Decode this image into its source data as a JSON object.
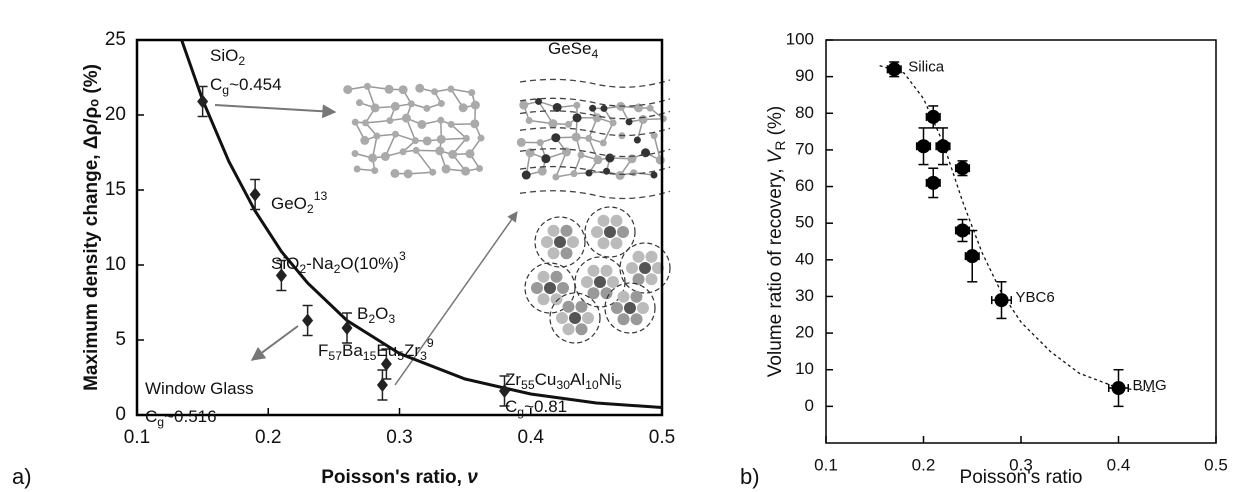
{
  "chart_data": [
    {
      "type": "scatter",
      "panel_label": "a)",
      "xlabel": {
        "runs": [
          {
            "text": "Poisson's ratio, "
          },
          {
            "text": "ν",
            "style": "italic"
          }
        ]
      },
      "ylabel": "Maximum density change, Δρ/ρₒ (%)",
      "xlim": [
        0.1,
        0.5
      ],
      "xticks": [
        0.1,
        0.2,
        0.3,
        0.4,
        0.5
      ],
      "ylim": [
        0,
        25
      ],
      "yticks": [
        0,
        5,
        10,
        15,
        20,
        25
      ],
      "marker": "diamond",
      "color": "#222222",
      "points": {
        "x": [
          0.15,
          0.19,
          0.21,
          0.23,
          0.26,
          0.29,
          0.287,
          0.38
        ],
        "y": [
          20.9,
          14.7,
          9.3,
          6.3,
          5.8,
          3.4,
          2.0,
          1.6
        ],
        "yerr": [
          1,
          1,
          1,
          1,
          1,
          1,
          1,
          1
        ]
      },
      "curve": {
        "x": [
          0.134,
          0.15,
          0.17,
          0.19,
          0.21,
          0.23,
          0.26,
          0.3,
          0.35,
          0.4,
          0.45,
          0.5
        ],
        "y": [
          25,
          21,
          16.9,
          13.6,
          10.9,
          8.8,
          6.3,
          4.1,
          2.4,
          1.4,
          0.8,
          0.5
        ],
        "style": "solid"
      },
      "annotations": [
        {
          "runs": [
            {
              "text": "SiO"
            },
            {
              "text": "2",
              "style": "sub"
            }
          ]
        },
        {
          "runs": [
            {
              "text": "C"
            },
            {
              "text": "g",
              "style": "sub"
            },
            {
              "text": "~0.454"
            }
          ]
        },
        {
          "runs": [
            {
              "text": "GeO"
            },
            {
              "text": "2",
              "style": "sub"
            },
            {
              "text": "13",
              "style": "sup"
            }
          ]
        },
        {
          "runs": [
            {
              "text": "SiO"
            },
            {
              "text": "2",
              "style": "sub"
            },
            {
              "text": "-Na"
            },
            {
              "text": "2",
              "style": "sub"
            },
            {
              "text": "O(10%)"
            },
            {
              "text": "3",
              "style": "sup"
            }
          ]
        },
        {
          "runs": [
            {
              "text": "B"
            },
            {
              "text": "2",
              "style": "sub"
            },
            {
              "text": "O"
            },
            {
              "text": "3",
              "style": "sub"
            }
          ]
        },
        {
          "runs": [
            {
              "text": "F"
            },
            {
              "text": "57",
              "style": "sub"
            },
            {
              "text": "Ba"
            },
            {
              "text": "15",
              "style": "sub"
            },
            {
              "text": "Eu"
            },
            {
              "text": "5",
              "style": "sub"
            },
            {
              "text": "Zr"
            },
            {
              "text": "3",
              "style": "sub"
            },
            {
              "text": "9",
              "style": "sup"
            }
          ]
        },
        {
          "runs": [
            {
              "text": "Window Glass"
            }
          ]
        },
        {
          "runs": [
            {
              "text": "C"
            },
            {
              "text": "g",
              "style": "sub"
            },
            {
              "text": "~0.516"
            }
          ]
        },
        {
          "runs": [
            {
              "text": "Zr"
            },
            {
              "text": "55",
              "style": "sub"
            },
            {
              "text": "Cu"
            },
            {
              "text": "30",
              "style": "sub"
            },
            {
              "text": "Al"
            },
            {
              "text": "10",
              "style": "sub"
            },
            {
              "text": "Ni"
            },
            {
              "text": "5",
              "style": "sub"
            }
          ]
        },
        {
          "runs": [
            {
              "text": "C"
            },
            {
              "text": "g",
              "style": "sub"
            },
            {
              "text": "~0.81"
            }
          ]
        },
        {
          "runs": [
            {
              "text": "GeSe"
            },
            {
              "text": "4",
              "style": "sub"
            }
          ]
        }
      ]
    },
    {
      "type": "scatter",
      "panel_label": "b)",
      "xlabel": "Poisson's ratio",
      "ylabel": {
        "runs": [
          {
            "text": "Volume ratio of recovery, "
          },
          {
            "text": "V",
            "style": "italic"
          },
          {
            "text": "R",
            "style": "sub"
          },
          {
            "text": " (%)"
          }
        ]
      },
      "xlim": [
        0.1,
        0.5
      ],
      "xticks": [
        0.1,
        0.2,
        0.3,
        0.4,
        0.5
      ],
      "ylim": [
        -10,
        100
      ],
      "yticks": [
        0,
        10,
        20,
        30,
        40,
        50,
        60,
        70,
        80,
        90,
        100
      ],
      "marker": "circle",
      "color": "#000000",
      "points": {
        "x": [
          0.17,
          0.21,
          0.2,
          0.22,
          0.21,
          0.24,
          0.24,
          0.25,
          0.28,
          0.4
        ],
        "y": [
          92,
          79,
          71,
          71,
          61,
          65,
          48,
          41,
          29,
          5
        ],
        "xerr": [
          0.007,
          0.007,
          0.007,
          0.007,
          0.007,
          0.007,
          0.007,
          0.007,
          0.01,
          0.01
        ],
        "yerr": [
          2,
          3,
          5,
          5,
          4,
          2,
          3,
          7,
          5,
          5
        ]
      },
      "labels": [
        "Silica",
        null,
        null,
        null,
        null,
        null,
        null,
        null,
        "YBC6",
        "BMG"
      ],
      "curve": {
        "x": [
          0.155,
          0.18,
          0.2,
          0.22,
          0.24,
          0.26,
          0.28,
          0.3,
          0.33,
          0.36,
          0.4,
          0.44
        ],
        "y": [
          93,
          91,
          84,
          72,
          56,
          42,
          31,
          23,
          15,
          9,
          5,
          4
        ],
        "style": "dashed"
      }
    }
  ]
}
